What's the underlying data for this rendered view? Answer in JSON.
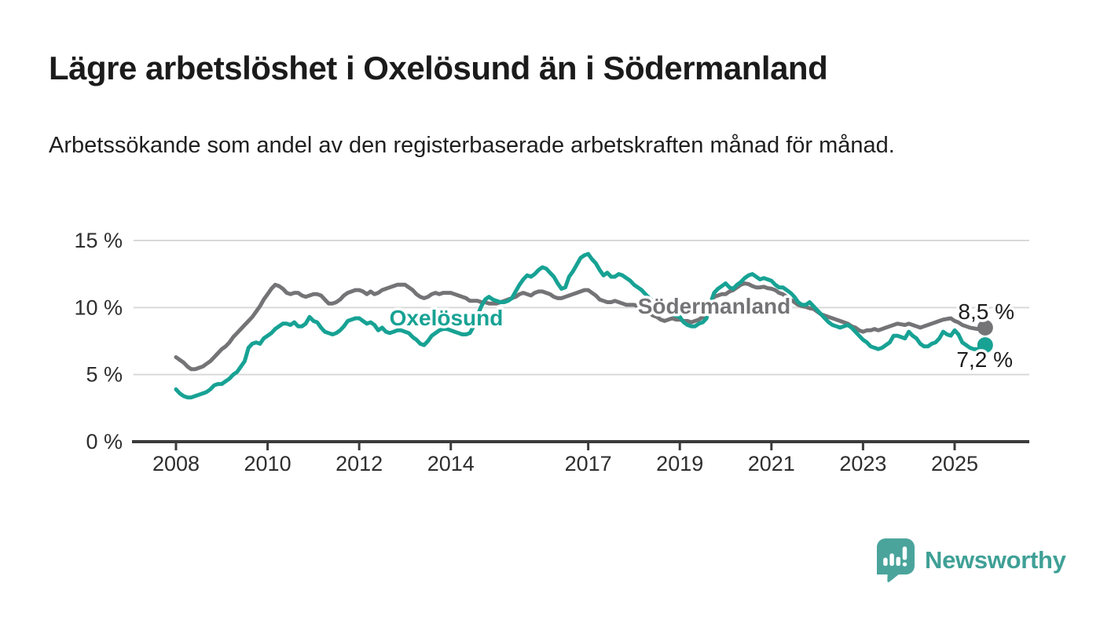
{
  "header": {
    "title": "Lägre arbetslöshet i Oxelösund än i Södermanland",
    "subtitle": "Arbetssökande som andel av den registerbaserade arbetskraften månad för månad."
  },
  "footer": {
    "brand": "Newsworthy",
    "brand_color": "#3fa096",
    "icon_color": "#4aa49c"
  },
  "chart_data": {
    "type": "line",
    "unit": "%",
    "grid": true,
    "x_start_year": 2008,
    "x_step_months": 1,
    "x_tick_labels": [
      "2008",
      "2010",
      "2012",
      "2014",
      "2017",
      "2019",
      "2021",
      "2023",
      "2025"
    ],
    "x_tick_years": [
      2008,
      2010,
      2012,
      2014,
      2017,
      2019,
      2021,
      2023,
      2025
    ],
    "y_ticks": [
      {
        "value": 0,
        "label": "0 %"
      },
      {
        "value": 5,
        "label": "5 %"
      },
      {
        "value": 10,
        "label": "10 %"
      },
      {
        "value": 15,
        "label": "15 %"
      }
    ],
    "ylim": [
      0,
      15
    ],
    "legend_position": "inline-labels",
    "series": [
      {
        "name": "Oxelösund",
        "color": "#17a294",
        "end_label": "7,2 %",
        "end_value": 7.2,
        "values": [
          3.9,
          3.6,
          3.4,
          3.3,
          3.3,
          3.4,
          3.5,
          3.6,
          3.7,
          3.9,
          4.2,
          4.3,
          4.3,
          4.5,
          4.7,
          5.0,
          5.2,
          5.6,
          6.0,
          7.0,
          7.3,
          7.4,
          7.3,
          7.7,
          7.9,
          8.1,
          8.4,
          8.6,
          8.8,
          8.8,
          8.7,
          8.9,
          8.6,
          8.6,
          8.8,
          9.3,
          9.0,
          8.9,
          8.5,
          8.2,
          8.1,
          8.0,
          8.1,
          8.3,
          8.6,
          9.0,
          9.1,
          9.2,
          9.2,
          9.0,
          8.8,
          8.9,
          8.7,
          8.3,
          8.5,
          8.2,
          8.1,
          8.2,
          8.3,
          8.3,
          8.2,
          8.1,
          7.8,
          7.6,
          7.3,
          7.2,
          7.5,
          7.9,
          8.1,
          8.3,
          8.4,
          8.4,
          8.3,
          8.2,
          8.1,
          8.0,
          8.0,
          8.1,
          8.6,
          9.4,
          10.1,
          10.6,
          10.8,
          10.6,
          10.5,
          10.4,
          10.4,
          10.5,
          10.7,
          11.2,
          11.7,
          12.1,
          12.4,
          12.3,
          12.5,
          12.8,
          13.0,
          12.9,
          12.6,
          12.3,
          11.8,
          11.4,
          11.5,
          12.3,
          12.7,
          13.2,
          13.7,
          13.9,
          14.0,
          13.6,
          13.3,
          12.8,
          12.4,
          12.6,
          12.3,
          12.3,
          12.5,
          12.4,
          12.2,
          12.0,
          11.7,
          11.5,
          11.3,
          11.0,
          10.7,
          10.5,
          10.2,
          10.1,
          10.0,
          9.8,
          9.5,
          9.4,
          9.3,
          8.9,
          8.7,
          8.6,
          8.6,
          8.8,
          8.9,
          9.2,
          10.3,
          11.1,
          11.4,
          11.6,
          11.8,
          11.5,
          11.4,
          11.7,
          11.9,
          12.2,
          12.4,
          12.5,
          12.3,
          12.1,
          12.2,
          12.1,
          12.0,
          11.7,
          11.5,
          11.5,
          11.3,
          11.1,
          10.8,
          10.4,
          10.2,
          10.2,
          10.4,
          10.1,
          9.8,
          9.5,
          9.2,
          8.9,
          8.7,
          8.6,
          8.5,
          8.6,
          8.7,
          8.5,
          8.2,
          7.9,
          7.6,
          7.4,
          7.1,
          7.0,
          6.9,
          7.0,
          7.2,
          7.4,
          7.9,
          7.9,
          7.8,
          7.7,
          8.2,
          7.9,
          7.7,
          7.3,
          7.1,
          7.1,
          7.3,
          7.4,
          7.7,
          8.2,
          8.0,
          7.9,
          8.3,
          8.0,
          7.4,
          7.2,
          7.0,
          6.9,
          6.9,
          7.0,
          7.2
        ]
      },
      {
        "name": "Södermanland",
        "color": "#747477",
        "end_label": "8,5 %",
        "end_value": 8.5,
        "values": [
          6.3,
          6.1,
          5.9,
          5.6,
          5.4,
          5.4,
          5.5,
          5.6,
          5.8,
          6.0,
          6.3,
          6.6,
          6.9,
          7.1,
          7.4,
          7.8,
          8.1,
          8.4,
          8.7,
          9.0,
          9.3,
          9.7,
          10.1,
          10.6,
          11.0,
          11.4,
          11.7,
          11.6,
          11.4,
          11.1,
          11.0,
          11.1,
          11.1,
          10.9,
          10.8,
          10.9,
          11.0,
          11.0,
          10.9,
          10.6,
          10.3,
          10.3,
          10.4,
          10.6,
          10.9,
          11.1,
          11.2,
          11.3,
          11.3,
          11.2,
          11.0,
          11.2,
          11.0,
          11.1,
          11.3,
          11.4,
          11.5,
          11.6,
          11.7,
          11.7,
          11.7,
          11.5,
          11.3,
          11.0,
          10.8,
          10.7,
          10.8,
          11.0,
          11.1,
          11.0,
          11.1,
          11.1,
          11.1,
          11.0,
          10.9,
          10.8,
          10.7,
          10.5,
          10.5,
          10.5,
          10.4,
          10.4,
          10.3,
          10.3,
          10.3,
          10.4,
          10.5,
          10.6,
          10.7,
          10.8,
          11.0,
          11.1,
          11.0,
          10.9,
          11.1,
          11.2,
          11.2,
          11.1,
          11.0,
          10.8,
          10.7,
          10.7,
          10.8,
          10.9,
          11.0,
          11.1,
          11.2,
          11.3,
          11.3,
          11.1,
          10.9,
          10.6,
          10.5,
          10.4,
          10.4,
          10.5,
          10.4,
          10.3,
          10.2,
          10.2,
          10.2,
          10.1,
          10.0,
          9.8,
          9.6,
          9.4,
          9.3,
          9.1,
          9.0,
          9.1,
          9.2,
          9.1,
          9.1,
          9.0,
          9.0,
          8.9,
          9.0,
          9.1,
          9.3,
          9.7,
          10.2,
          10.8,
          10.9,
          11.0,
          11.0,
          11.2,
          11.3,
          11.5,
          11.7,
          11.8,
          11.75,
          11.6,
          11.5,
          11.5,
          11.55,
          11.45,
          11.4,
          11.3,
          11.1,
          11.0,
          10.8,
          10.6,
          10.4,
          10.2,
          10.1,
          10.05,
          9.95,
          9.9,
          9.7,
          9.5,
          9.4,
          9.3,
          9.2,
          9.1,
          9.0,
          8.9,
          8.8,
          8.6,
          8.5,
          8.3,
          8.2,
          8.3,
          8.3,
          8.4,
          8.3,
          8.4,
          8.5,
          8.6,
          8.7,
          8.8,
          8.75,
          8.7,
          8.8,
          8.7,
          8.6,
          8.5,
          8.6,
          8.7,
          8.8,
          8.9,
          9.0,
          9.1,
          9.15,
          9.2,
          9.0,
          8.9,
          8.7,
          8.6,
          8.5,
          8.45,
          8.4,
          8.4,
          8.5
        ]
      }
    ]
  }
}
